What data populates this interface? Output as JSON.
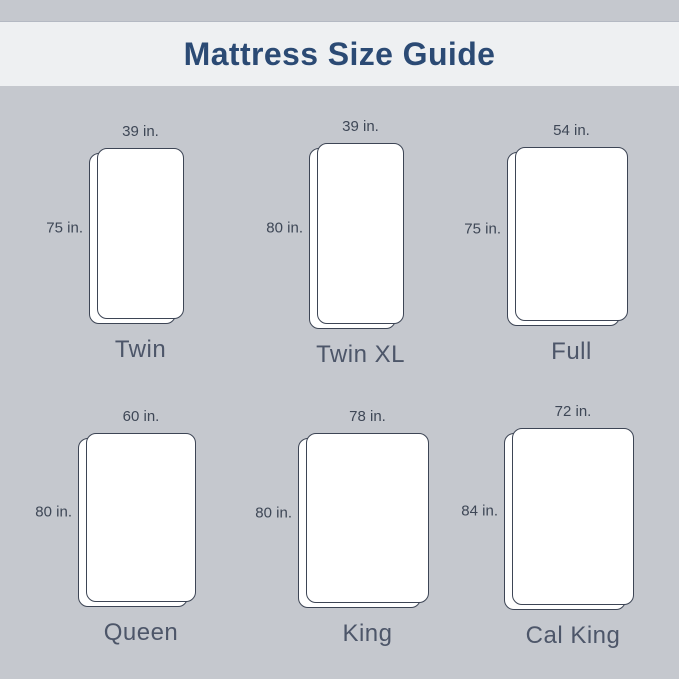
{
  "header": {
    "title": "Mattress Size Guide"
  },
  "colors": {
    "bg": "#c5c8ce",
    "band": "#eef0f2",
    "title": "#2b4a74",
    "outline": "#3d4555",
    "ink": "#3e4756",
    "name": "#4d5669"
  },
  "mattresses": [
    {
      "id": "twin",
      "name": "Twin",
      "width_in": 39,
      "height_in": 75,
      "width_label": "39 in.",
      "height_label": "75 in."
    },
    {
      "id": "twin-xl",
      "name": "Twin XL",
      "width_in": 39,
      "height_in": 80,
      "width_label": "39 in.",
      "height_label": "80 in."
    },
    {
      "id": "full",
      "name": "Full",
      "width_in": 54,
      "height_in": 75,
      "width_label": "54 in.",
      "height_label": "75 in."
    },
    {
      "id": "queen",
      "name": "Queen",
      "width_in": 60,
      "height_in": 80,
      "width_label": "60 in.",
      "height_label": "80 in."
    },
    {
      "id": "king",
      "name": "King",
      "width_in": 78,
      "height_in": 80,
      "width_label": "78 in.",
      "height_label": "80 in."
    },
    {
      "id": "cal-king",
      "name": "Cal King",
      "width_in": 72,
      "height_in": 84,
      "width_label": "72 in.",
      "height_label": "84 in."
    }
  ]
}
